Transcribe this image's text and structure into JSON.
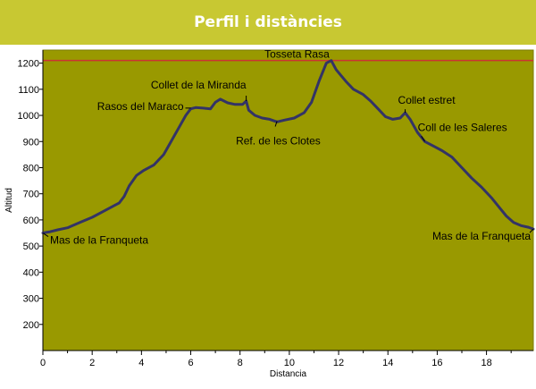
{
  "header": {
    "title": "Perfil i distàncies"
  },
  "chart_data": {
    "type": "line",
    "title": "",
    "xlabel": "Distancia",
    "ylabel": "Altitud",
    "xlim": [
      0,
      19.9
    ],
    "ylim": [
      100,
      1250
    ],
    "x_ticks": [
      0,
      2,
      4,
      6,
      8,
      10,
      12,
      14,
      16,
      18
    ],
    "y_ticks": [
      200,
      300,
      400,
      500,
      600,
      700,
      800,
      900,
      1000,
      1100,
      1200
    ],
    "grid": false,
    "reference_line": {
      "y": 1210
    },
    "colors": {
      "plot_bg": "#999900",
      "line": "#333366",
      "reference": "#cc3333",
      "frame": "#7a7a00"
    },
    "series": [
      {
        "name": "",
        "points": [
          [
            0.0,
            550
          ],
          [
            0.3,
            555
          ],
          [
            0.6,
            562
          ],
          [
            1.0,
            570
          ],
          [
            1.5,
            590
          ],
          [
            2.0,
            610
          ],
          [
            2.5,
            635
          ],
          [
            2.9,
            655
          ],
          [
            3.1,
            665
          ],
          [
            3.3,
            690
          ],
          [
            3.5,
            730
          ],
          [
            3.8,
            770
          ],
          [
            4.1,
            790
          ],
          [
            4.5,
            810
          ],
          [
            4.9,
            850
          ],
          [
            5.2,
            900
          ],
          [
            5.5,
            950
          ],
          [
            5.8,
            1000
          ],
          [
            6.0,
            1025
          ],
          [
            6.2,
            1030
          ],
          [
            6.5,
            1028
          ],
          [
            6.8,
            1025
          ],
          [
            7.0,
            1050
          ],
          [
            7.2,
            1062
          ],
          [
            7.5,
            1048
          ],
          [
            7.8,
            1042
          ],
          [
            8.1,
            1042
          ],
          [
            8.25,
            1055
          ],
          [
            8.35,
            1020
          ],
          [
            8.6,
            1000
          ],
          [
            8.9,
            990
          ],
          [
            9.2,
            985
          ],
          [
            9.5,
            975
          ],
          [
            9.8,
            982
          ],
          [
            10.2,
            990
          ],
          [
            10.6,
            1010
          ],
          [
            10.9,
            1050
          ],
          [
            11.2,
            1130
          ],
          [
            11.5,
            1200
          ],
          [
            11.7,
            1210
          ],
          [
            11.9,
            1175
          ],
          [
            12.3,
            1130
          ],
          [
            12.6,
            1100
          ],
          [
            13.0,
            1080
          ],
          [
            13.3,
            1055
          ],
          [
            13.6,
            1025
          ],
          [
            13.9,
            995
          ],
          [
            14.2,
            985
          ],
          [
            14.5,
            990
          ],
          [
            14.7,
            1010
          ],
          [
            14.9,
            985
          ],
          [
            15.2,
            935
          ],
          [
            15.5,
            900
          ],
          [
            15.9,
            880
          ],
          [
            16.2,
            865
          ],
          [
            16.6,
            840
          ],
          [
            17.0,
            800
          ],
          [
            17.4,
            760
          ],
          [
            17.8,
            725
          ],
          [
            18.2,
            685
          ],
          [
            18.5,
            650
          ],
          [
            18.8,
            615
          ],
          [
            19.1,
            590
          ],
          [
            19.4,
            578
          ],
          [
            19.7,
            572
          ],
          [
            19.9,
            565
          ]
        ]
      }
    ],
    "annotations": [
      {
        "text": "Tosseta Rasa",
        "x": 11.7,
        "y": 1210
      },
      {
        "text": "Collet de la Miranda",
        "x": 8.25,
        "y": 1055
      },
      {
        "text": "Rasos del Maraco",
        "x": 6.0,
        "y": 1028
      },
      {
        "text": "Ref. de les Clotes",
        "x": 9.5,
        "y": 978
      },
      {
        "text": "Collet estret",
        "x": 14.7,
        "y": 1010
      },
      {
        "text": "Coll de les Saleres",
        "x": 15.5,
        "y": 900
      },
      {
        "text": "Mas de la Franqueta",
        "x": 0.0,
        "y": 550
      },
      {
        "text": "Mas de la Franqueta",
        "x": 19.9,
        "y": 565
      }
    ]
  }
}
